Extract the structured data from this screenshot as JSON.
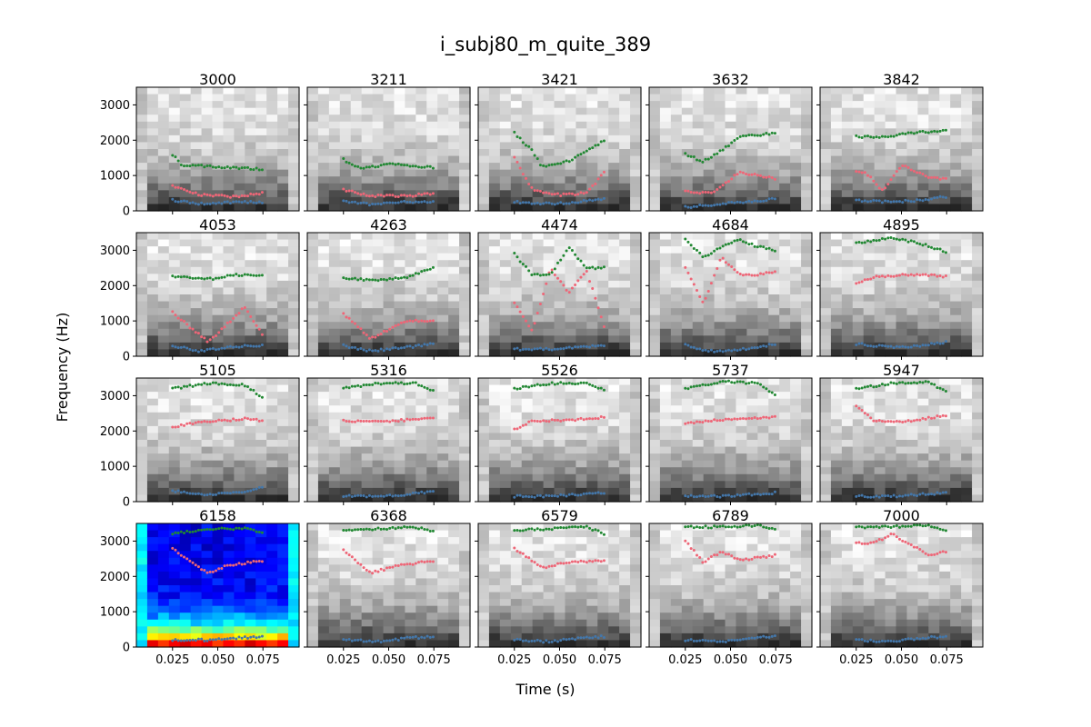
{
  "chart_data": {
    "type": "scatter",
    "title": "i_subj80_m_quite_389",
    "xlabel": "Time (s)",
    "ylabel": "Frequency (Hz)",
    "xlim": [
      0.005,
      0.095
    ],
    "ylim": [
      0,
      3500
    ],
    "xticks": [
      0.025,
      0.05,
      0.075
    ],
    "xtick_labels": [
      "0.025",
      "0.050",
      "0.075"
    ],
    "yticks": [
      0,
      1000,
      2000,
      3000
    ],
    "ytick_labels": [
      "0",
      "1000",
      "2000",
      "3000"
    ],
    "grid": false,
    "layout": {
      "rows": 4,
      "cols": 5
    },
    "colors": {
      "f1": "#4477aa",
      "f2": "#ee6677",
      "f3": "#228833"
    },
    "highlighted_panel": "6158",
    "highlight_colormap": "jet",
    "panels": [
      {
        "title": "3000",
        "f1": [
          [
            0.025,
            300
          ],
          [
            0.04,
            200
          ],
          [
            0.06,
            250
          ],
          [
            0.075,
            250
          ]
        ],
        "f2": [
          [
            0.025,
            700
          ],
          [
            0.04,
            450
          ],
          [
            0.06,
            400
          ],
          [
            0.075,
            500
          ]
        ],
        "f3": [
          [
            0.025,
            1600
          ],
          [
            0.03,
            1300
          ],
          [
            0.05,
            1250
          ],
          [
            0.075,
            1180
          ]
        ]
      },
      {
        "title": "3211",
        "f1": [
          [
            0.025,
            280
          ],
          [
            0.04,
            180
          ],
          [
            0.06,
            250
          ],
          [
            0.075,
            250
          ]
        ],
        "f2": [
          [
            0.025,
            600
          ],
          [
            0.04,
            420
          ],
          [
            0.06,
            420
          ],
          [
            0.075,
            500
          ]
        ],
        "f3": [
          [
            0.025,
            1450
          ],
          [
            0.035,
            1200
          ],
          [
            0.05,
            1320
          ],
          [
            0.075,
            1220
          ]
        ]
      },
      {
        "title": "3421",
        "f1": [
          [
            0.025,
            250
          ],
          [
            0.045,
            200
          ],
          [
            0.06,
            250
          ],
          [
            0.075,
            350
          ]
        ],
        "f2": [
          [
            0.025,
            1500
          ],
          [
            0.035,
            600
          ],
          [
            0.05,
            450
          ],
          [
            0.065,
            500
          ],
          [
            0.075,
            1100
          ]
        ],
        "f3": [
          [
            0.025,
            2200
          ],
          [
            0.035,
            1700
          ],
          [
            0.04,
            1250
          ],
          [
            0.055,
            1400
          ],
          [
            0.075,
            2000
          ]
        ]
      },
      {
        "title": "3632",
        "f1": [
          [
            0.025,
            100
          ],
          [
            0.045,
            200
          ],
          [
            0.06,
            250
          ],
          [
            0.075,
            350
          ]
        ],
        "f2": [
          [
            0.025,
            550
          ],
          [
            0.04,
            500
          ],
          [
            0.055,
            1100
          ],
          [
            0.065,
            1000
          ],
          [
            0.075,
            900
          ]
        ],
        "f3": [
          [
            0.025,
            1600
          ],
          [
            0.035,
            1400
          ],
          [
            0.045,
            1700
          ],
          [
            0.055,
            2100
          ],
          [
            0.075,
            2200
          ]
        ]
      },
      {
        "title": "3842",
        "f1": [
          [
            0.025,
            300
          ],
          [
            0.045,
            250
          ],
          [
            0.06,
            300
          ],
          [
            0.075,
            400
          ]
        ],
        "f2": [
          [
            0.03,
            1100
          ],
          [
            0.04,
            550
          ],
          [
            0.05,
            1300
          ],
          [
            0.065,
            950
          ],
          [
            0.075,
            900
          ]
        ],
        "f3": [
          [
            0.025,
            2100
          ],
          [
            0.04,
            2080
          ],
          [
            0.055,
            2200
          ],
          [
            0.075,
            2280
          ]
        ]
      },
      {
        "title": "4053",
        "f1": [
          [
            0.025,
            300
          ],
          [
            0.04,
            150
          ],
          [
            0.06,
            280
          ],
          [
            0.075,
            300
          ]
        ],
        "f2": [
          [
            0.025,
            1250
          ],
          [
            0.035,
            800
          ],
          [
            0.045,
            400
          ],
          [
            0.065,
            1400
          ],
          [
            0.075,
            600
          ]
        ],
        "f3": [
          [
            0.025,
            2250
          ],
          [
            0.045,
            2180
          ],
          [
            0.06,
            2300
          ],
          [
            0.075,
            2280
          ]
        ]
      },
      {
        "title": "4263",
        "f1": [
          [
            0.025,
            300
          ],
          [
            0.04,
            150
          ],
          [
            0.06,
            250
          ],
          [
            0.075,
            350
          ]
        ],
        "f2": [
          [
            0.025,
            1200
          ],
          [
            0.04,
            500
          ],
          [
            0.06,
            1000
          ],
          [
            0.075,
            1000
          ]
        ],
        "f3": [
          [
            0.025,
            2200
          ],
          [
            0.045,
            2150
          ],
          [
            0.06,
            2250
          ],
          [
            0.075,
            2500
          ]
        ]
      },
      {
        "title": "4474",
        "f1": [
          [
            0.025,
            200
          ],
          [
            0.045,
            200
          ],
          [
            0.06,
            250
          ],
          [
            0.075,
            300
          ]
        ],
        "f2": [
          [
            0.025,
            1500
          ],
          [
            0.035,
            700
          ],
          [
            0.045,
            2500
          ],
          [
            0.055,
            1800
          ],
          [
            0.065,
            2400
          ],
          [
            0.075,
            800
          ]
        ],
        "f3": [
          [
            0.025,
            2900
          ],
          [
            0.035,
            2300
          ],
          [
            0.045,
            2300
          ],
          [
            0.055,
            3100
          ],
          [
            0.065,
            2500
          ],
          [
            0.075,
            2500
          ]
        ]
      },
      {
        "title": "4684",
        "f1": [
          [
            0.025,
            350
          ],
          [
            0.035,
            150
          ],
          [
            0.05,
            150
          ],
          [
            0.065,
            250
          ],
          [
            0.075,
            350
          ]
        ],
        "f2": [
          [
            0.025,
            2500
          ],
          [
            0.035,
            1500
          ],
          [
            0.045,
            2800
          ],
          [
            0.055,
            2300
          ],
          [
            0.065,
            2300
          ],
          [
            0.075,
            2400
          ]
        ],
        "f3": [
          [
            0.025,
            3300
          ],
          [
            0.035,
            2800
          ],
          [
            0.045,
            3100
          ],
          [
            0.055,
            3300
          ],
          [
            0.065,
            3100
          ],
          [
            0.075,
            3000
          ]
        ]
      },
      {
        "title": "4895",
        "f1": [
          [
            0.025,
            350
          ],
          [
            0.045,
            250
          ],
          [
            0.06,
            300
          ],
          [
            0.075,
            400
          ]
        ],
        "f2": [
          [
            0.025,
            2050
          ],
          [
            0.035,
            2250
          ],
          [
            0.05,
            2300
          ],
          [
            0.065,
            2300
          ],
          [
            0.075,
            2250
          ]
        ],
        "f3": [
          [
            0.025,
            3200
          ],
          [
            0.045,
            3350
          ],
          [
            0.06,
            3200
          ],
          [
            0.075,
            2950
          ]
        ]
      },
      {
        "title": "5105",
        "f1": [
          [
            0.025,
            300
          ],
          [
            0.04,
            200
          ],
          [
            0.06,
            250
          ],
          [
            0.075,
            400
          ]
        ],
        "f2": [
          [
            0.025,
            2100
          ],
          [
            0.04,
            2250
          ],
          [
            0.055,
            2300
          ],
          [
            0.065,
            2350
          ],
          [
            0.075,
            2300
          ]
        ],
        "f3": [
          [
            0.025,
            3200
          ],
          [
            0.045,
            3350
          ],
          [
            0.065,
            3300
          ],
          [
            0.075,
            2950
          ]
        ]
      },
      {
        "title": "5316",
        "f1": [
          [
            0.025,
            150
          ],
          [
            0.045,
            150
          ],
          [
            0.06,
            200
          ],
          [
            0.075,
            300
          ]
        ],
        "f2": [
          [
            0.025,
            2300
          ],
          [
            0.04,
            2250
          ],
          [
            0.055,
            2300
          ],
          [
            0.075,
            2350
          ]
        ],
        "f3": [
          [
            0.025,
            3200
          ],
          [
            0.045,
            3350
          ],
          [
            0.065,
            3350
          ],
          [
            0.075,
            3150
          ]
        ]
      },
      {
        "title": "5526",
        "f1": [
          [
            0.025,
            150
          ],
          [
            0.045,
            150
          ],
          [
            0.06,
            200
          ],
          [
            0.075,
            250
          ]
        ],
        "f2": [
          [
            0.025,
            2050
          ],
          [
            0.035,
            2300
          ],
          [
            0.055,
            2300
          ],
          [
            0.075,
            2400
          ]
        ],
        "f3": [
          [
            0.025,
            3200
          ],
          [
            0.045,
            3350
          ],
          [
            0.065,
            3350
          ],
          [
            0.075,
            3150
          ]
        ]
      },
      {
        "title": "5737",
        "f1": [
          [
            0.025,
            150
          ],
          [
            0.045,
            150
          ],
          [
            0.06,
            200
          ],
          [
            0.075,
            250
          ]
        ],
        "f2": [
          [
            0.025,
            2200
          ],
          [
            0.04,
            2300
          ],
          [
            0.055,
            2350
          ],
          [
            0.075,
            2400
          ]
        ],
        "f3": [
          [
            0.025,
            3200
          ],
          [
            0.045,
            3400
          ],
          [
            0.065,
            3350
          ],
          [
            0.075,
            3000
          ]
        ]
      },
      {
        "title": "5947",
        "f1": [
          [
            0.025,
            150
          ],
          [
            0.045,
            150
          ],
          [
            0.06,
            200
          ],
          [
            0.075,
            250
          ]
        ],
        "f2": [
          [
            0.025,
            2700
          ],
          [
            0.035,
            2300
          ],
          [
            0.05,
            2250
          ],
          [
            0.075,
            2450
          ]
        ],
        "f3": [
          [
            0.025,
            3200
          ],
          [
            0.045,
            3350
          ],
          [
            0.065,
            3400
          ],
          [
            0.075,
            3100
          ]
        ]
      },
      {
        "title": "6158",
        "f1": [
          [
            0.025,
            200
          ],
          [
            0.045,
            200
          ],
          [
            0.06,
            250
          ],
          [
            0.075,
            300
          ]
        ],
        "f2": [
          [
            0.025,
            2800
          ],
          [
            0.035,
            2400
          ],
          [
            0.045,
            2100
          ],
          [
            0.055,
            2300
          ],
          [
            0.075,
            2450
          ]
        ],
        "f3": [
          [
            0.025,
            3200
          ],
          [
            0.045,
            3350
          ],
          [
            0.065,
            3350
          ],
          [
            0.075,
            3250
          ]
        ]
      },
      {
        "title": "6368",
        "f1": [
          [
            0.025,
            200
          ],
          [
            0.045,
            150
          ],
          [
            0.06,
            250
          ],
          [
            0.075,
            300
          ]
        ],
        "f2": [
          [
            0.025,
            2750
          ],
          [
            0.04,
            2100
          ],
          [
            0.055,
            2300
          ],
          [
            0.075,
            2450
          ]
        ],
        "f3": [
          [
            0.025,
            3300
          ],
          [
            0.045,
            3350
          ],
          [
            0.065,
            3400
          ],
          [
            0.075,
            3250
          ]
        ]
      },
      {
        "title": "6579",
        "f1": [
          [
            0.025,
            200
          ],
          [
            0.045,
            150
          ],
          [
            0.06,
            250
          ],
          [
            0.075,
            300
          ]
        ],
        "f2": [
          [
            0.025,
            2800
          ],
          [
            0.04,
            2250
          ],
          [
            0.055,
            2400
          ],
          [
            0.075,
            2450
          ]
        ],
        "f3": [
          [
            0.025,
            3300
          ],
          [
            0.045,
            3350
          ],
          [
            0.065,
            3400
          ],
          [
            0.075,
            3200
          ]
        ]
      },
      {
        "title": "6789",
        "f1": [
          [
            0.025,
            200
          ],
          [
            0.045,
            150
          ],
          [
            0.06,
            250
          ],
          [
            0.075,
            300
          ]
        ],
        "f2": [
          [
            0.025,
            3000
          ],
          [
            0.035,
            2400
          ],
          [
            0.045,
            2700
          ],
          [
            0.055,
            2450
          ],
          [
            0.075,
            2600
          ]
        ],
        "f3": [
          [
            0.025,
            3400
          ],
          [
            0.045,
            3400
          ],
          [
            0.065,
            3450
          ],
          [
            0.075,
            3350
          ]
        ]
      },
      {
        "title": "7000",
        "f1": [
          [
            0.025,
            200
          ],
          [
            0.045,
            150
          ],
          [
            0.06,
            250
          ],
          [
            0.075,
            300
          ]
        ],
        "f2": [
          [
            0.025,
            2950
          ],
          [
            0.035,
            2950
          ],
          [
            0.045,
            3200
          ],
          [
            0.055,
            2900
          ],
          [
            0.065,
            2600
          ],
          [
            0.075,
            2700
          ]
        ],
        "f3": [
          [
            0.025,
            3400
          ],
          [
            0.045,
            3400
          ],
          [
            0.065,
            3450
          ],
          [
            0.075,
            3300
          ]
        ]
      }
    ]
  }
}
